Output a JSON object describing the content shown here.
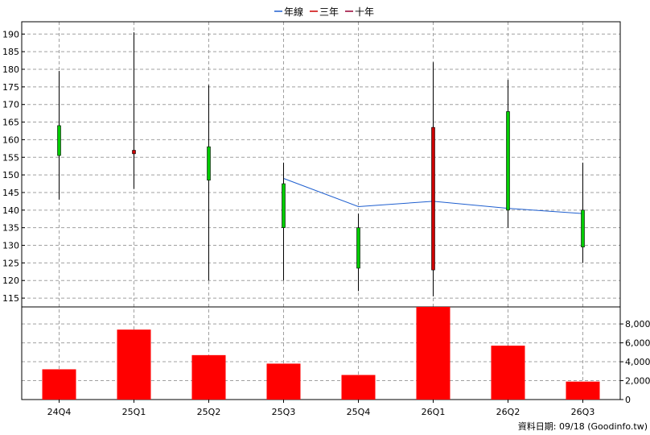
{
  "chart_data": {
    "type": "candlestick",
    "categories": [
      "24Q4",
      "25Q1",
      "25Q2",
      "25Q3",
      "25Q4",
      "26Q1",
      "26Q2",
      "26Q3"
    ],
    "legend": [
      {
        "label": "年線",
        "color": "#1f5fcf"
      },
      {
        "label": "三年",
        "color": "#cc0000"
      },
      {
        "label": "十年",
        "color": "#990033"
      }
    ],
    "price_axis": {
      "ylim": [
        112.5,
        193.5
      ],
      "ticks": [
        115,
        120,
        125,
        130,
        135,
        140,
        145,
        150,
        155,
        160,
        165,
        170,
        175,
        180,
        185,
        190
      ]
    },
    "candles": [
      {
        "open": 155.5,
        "close": 164.0,
        "high": 179.5,
        "low": 143.0
      },
      {
        "open": 157.0,
        "close": 156.0,
        "high": 190.5,
        "low": 146.0
      },
      {
        "open": 148.5,
        "close": 158.0,
        "high": 175.5,
        "low": 120.0
      },
      {
        "open": 135.0,
        "close": 147.5,
        "high": 153.5,
        "low": 120.0
      },
      {
        "open": 123.5,
        "close": 135.0,
        "high": 139.0,
        "low": 117.0
      },
      {
        "open": 163.5,
        "close": 123.0,
        "high": 182.0,
        "low": 115.5
      },
      {
        "open": 140.0,
        "close": 168.0,
        "high": 177.0,
        "low": 135.0
      },
      {
        "open": 129.5,
        "close": 140.0,
        "high": 153.5,
        "low": 125.0
      }
    ],
    "up_color": "#00cc00",
    "down_color": "#cc0000",
    "year_line": {
      "name": "年線",
      "color": "#1f5fcf",
      "values": [
        null,
        null,
        null,
        149.0,
        141.0,
        142.5,
        140.5,
        139.0
      ]
    },
    "volume_axis": {
      "ylim": [
        0,
        9800
      ],
      "ticks": [
        0,
        2000,
        4000,
        6000,
        8000
      ],
      "tick_labels": [
        "0",
        "2,000",
        "4,000",
        "6,000",
        "8,000"
      ]
    },
    "volume": {
      "color": "#ff0000",
      "values": [
        3200,
        7400,
        4700,
        3800,
        2600,
        9800,
        5700,
        1900
      ]
    },
    "grid": true
  },
  "footer": {
    "text": "資料日期: 09/18  (Goodinfo.tw)"
  }
}
